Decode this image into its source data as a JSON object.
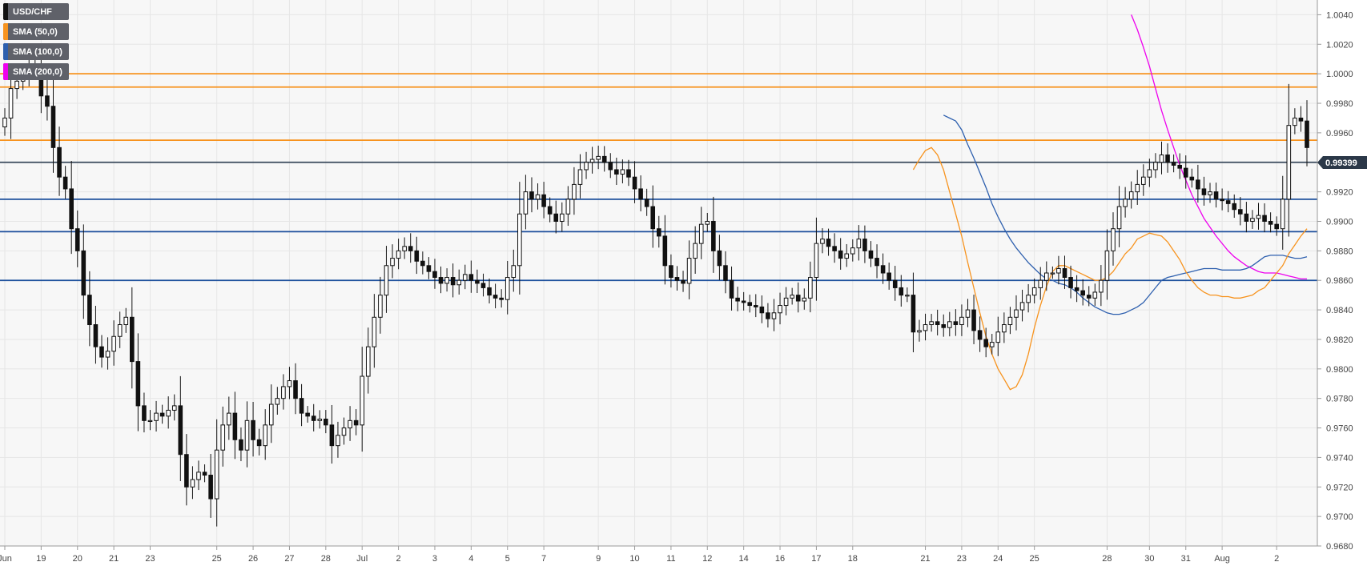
{
  "chart_data": {
    "type": "candlestick",
    "symbol": "USD/CHF",
    "legend": [
      {
        "label": "USD/CHF",
        "color": "#111111"
      },
      {
        "label": "SMA (50,0)",
        "color": "#f7931e"
      },
      {
        "label": "SMA (100,0)",
        "color": "#2d5fae"
      },
      {
        "label": "SMA (200,0)",
        "color": "#ee00ee"
      }
    ],
    "ylim": [
      0.968,
      1.005
    ],
    "y_ticks": [
      "0.9680",
      "0.9700",
      "0.9720",
      "0.9740",
      "0.9760",
      "0.9780",
      "0.9800",
      "0.9820",
      "0.9840",
      "0.9860",
      "0.9880",
      "0.9900",
      "0.9920",
      "0.9940",
      "0.9960",
      "0.9980",
      "1.0000",
      "1.0020",
      "1.0040"
    ],
    "x_ticks": [
      {
        "label": "Jun",
        "i": 0
      },
      {
        "label": "19",
        "i": 6
      },
      {
        "label": "20",
        "i": 12
      },
      {
        "label": "21",
        "i": 18
      },
      {
        "label": "23",
        "i": 24
      },
      {
        "label": "25",
        "i": 35
      },
      {
        "label": "26",
        "i": 41
      },
      {
        "label": "27",
        "i": 47
      },
      {
        "label": "28",
        "i": 53
      },
      {
        "label": "Jul",
        "i": 59
      },
      {
        "label": "2",
        "i": 65
      },
      {
        "label": "3",
        "i": 71
      },
      {
        "label": "4",
        "i": 77
      },
      {
        "label": "5",
        "i": 83
      },
      {
        "label": "7",
        "i": 89
      },
      {
        "label": "9",
        "i": 98
      },
      {
        "label": "10",
        "i": 104
      },
      {
        "label": "11",
        "i": 110
      },
      {
        "label": "12",
        "i": 116
      },
      {
        "label": "14",
        "i": 122
      },
      {
        "label": "16",
        "i": 128
      },
      {
        "label": "17",
        "i": 134
      },
      {
        "label": "18",
        "i": 140
      },
      {
        "label": "21",
        "i": 152
      },
      {
        "label": "23",
        "i": 158
      },
      {
        "label": "24",
        "i": 164
      },
      {
        "label": "25",
        "i": 170
      },
      {
        "label": "28",
        "i": 182
      },
      {
        "label": "30",
        "i": 189
      },
      {
        "label": "31",
        "i": 195
      },
      {
        "label": "Aug",
        "i": 201
      },
      {
        "label": "2",
        "i": 210
      }
    ],
    "current_price": 0.99399,
    "current_price_label": "0.99399",
    "horizontal_levels": [
      {
        "value": 1.0,
        "color": "#f7931e"
      },
      {
        "value": 0.9991,
        "color": "#f7931e"
      },
      {
        "value": 0.9955,
        "color": "#f7931e"
      },
      {
        "value": 0.994,
        "color": "#3a4a5c"
      },
      {
        "value": 0.9915,
        "color": "#1c4f9c"
      },
      {
        "value": 0.9893,
        "color": "#1c4f9c"
      },
      {
        "value": 0.986,
        "color": "#1c4f9c"
      }
    ],
    "closes": [
      0.997,
      0.999,
      0.9995,
      1.0,
      1.0005,
      1.0003,
      0.9985,
      0.9978,
      0.995,
      0.993,
      0.9922,
      0.9895,
      0.988,
      0.985,
      0.983,
      0.9815,
      0.9808,
      0.9812,
      0.9822,
      0.983,
      0.9835,
      0.9805,
      0.9775,
      0.9765,
      0.9765,
      0.977,
      0.9768,
      0.9772,
      0.9775,
      0.9742,
      0.972,
      0.9725,
      0.973,
      0.9728,
      0.9712,
      0.9745,
      0.9762,
      0.977,
      0.9752,
      0.9745,
      0.9765,
      0.9752,
      0.9748,
      0.9762,
      0.9776,
      0.978,
      0.9788,
      0.9792,
      0.978,
      0.977,
      0.9768,
      0.9765,
      0.9766,
      0.9762,
      0.9748,
      0.9755,
      0.976,
      0.9765,
      0.9762,
      0.9795,
      0.9815,
      0.9835,
      0.985,
      0.987,
      0.9875,
      0.988,
      0.9883,
      0.988,
      0.9873,
      0.987,
      0.9866,
      0.9862,
      0.9858,
      0.9862,
      0.9857,
      0.986,
      0.9864,
      0.986,
      0.9858,
      0.9855,
      0.985,
      0.9848,
      0.9847,
      0.9862,
      0.987,
      0.9905,
      0.992,
      0.9915,
      0.9918,
      0.991,
      0.9905,
      0.99,
      0.9905,
      0.9915,
      0.9925,
      0.9935,
      0.994,
      0.9942,
      0.9944,
      0.994,
      0.9935,
      0.9932,
      0.9935,
      0.993,
      0.9922,
      0.9915,
      0.991,
      0.9895,
      0.989,
      0.987,
      0.9862,
      0.986,
      0.9858,
      0.9875,
      0.9885,
      0.9898,
      0.99,
      0.988,
      0.987,
      0.986,
      0.9848,
      0.9846,
      0.9845,
      0.9843,
      0.9842,
      0.9838,
      0.9834,
      0.9838,
      0.9843,
      0.9848,
      0.985,
      0.9846,
      0.9848,
      0.9862,
      0.9885,
      0.9888,
      0.9883,
      0.988,
      0.9875,
      0.9878,
      0.9882,
      0.9888,
      0.988,
      0.9875,
      0.987,
      0.9865,
      0.986,
      0.9855,
      0.985,
      0.985,
      0.9825,
      0.9826,
      0.983,
      0.9832,
      0.983,
      0.9828,
      0.9832,
      0.983,
      0.9835,
      0.984,
      0.9826,
      0.982,
      0.9815,
      0.9818,
      0.9825,
      0.983,
      0.9835,
      0.984,
      0.9845,
      0.985,
      0.9855,
      0.986,
      0.9865,
      0.9865,
      0.9868,
      0.9862,
      0.9855,
      0.9853,
      0.985,
      0.9848,
      0.9852,
      0.986,
      0.988,
      0.9895,
      0.991,
      0.9915,
      0.992,
      0.9925,
      0.993,
      0.9935,
      0.994,
      0.9945,
      0.994,
      0.9938,
      0.9936,
      0.993,
      0.9928,
      0.9922,
      0.9918,
      0.992,
      0.9915,
      0.9914,
      0.9912,
      0.9908,
      0.9905,
      0.99,
      0.9902,
      0.9904,
      0.99,
      0.9898,
      0.9895,
      0.9915,
      0.9965,
      0.997,
      0.9968,
      0.995
    ],
    "sma50": [
      0.9935,
      0.9942,
      0.9948,
      0.995,
      0.9945,
      0.9935,
      0.992,
      0.9905,
      0.989,
      0.9872,
      0.9855,
      0.9838,
      0.9822,
      0.981,
      0.98,
      0.9793,
      0.9786,
      0.9788,
      0.9796,
      0.981,
      0.9828,
      0.9843,
      0.9856,
      0.9866,
      0.987,
      0.987,
      0.9868,
      0.9866,
      0.9864,
      0.9862,
      0.986,
      0.986,
      0.9862,
      0.9866,
      0.9872,
      0.9878,
      0.9882,
      0.9888,
      0.989,
      0.9892,
      0.9891,
      0.989,
      0.9886,
      0.988,
      0.9874,
      0.9866,
      0.986,
      0.9855,
      0.9852,
      0.985,
      0.985,
      0.9849,
      0.9849,
      0.9848,
      0.9848,
      0.9849,
      0.985,
      0.9853,
      0.9855,
      0.986,
      0.9865,
      0.987,
      0.9878,
      0.9884,
      0.989,
      0.9895
    ],
    "sma100": [
      0.9972,
      0.997,
      0.9968,
      0.9962,
      0.9952,
      0.9943,
      0.9933,
      0.9923,
      0.9912,
      0.9903,
      0.9895,
      0.9888,
      0.9882,
      0.9877,
      0.9872,
      0.9868,
      0.9864,
      0.9861,
      0.986,
      0.9858,
      0.9857,
      0.9855,
      0.9852,
      0.9848,
      0.9845,
      0.9842,
      0.984,
      0.9838,
      0.9837,
      0.9837,
      0.9838,
      0.984,
      0.9842,
      0.9845,
      0.985,
      0.9855,
      0.986,
      0.9862,
      0.9863,
      0.9864,
      0.9865,
      0.9866,
      0.9867,
      0.9868,
      0.9868,
      0.9868,
      0.9867,
      0.9867,
      0.9867,
      0.9867,
      0.9868,
      0.987,
      0.9873,
      0.9876,
      0.9877,
      0.9877,
      0.9877,
      0.9876,
      0.9875,
      0.9875,
      0.9876
    ],
    "sma200": [
      1.004,
      1.003,
      1.0018,
      1.0005,
      0.999,
      0.9975,
      0.9962,
      0.995,
      0.9938,
      0.9928,
      0.9918,
      0.991,
      0.9902,
      0.9896,
      0.989,
      0.9885,
      0.988,
      0.9876,
      0.9873,
      0.987,
      0.9868,
      0.9866,
      0.9865,
      0.9865,
      0.9865,
      0.9864,
      0.9863,
      0.9862,
      0.9861,
      0.9861
    ]
  }
}
